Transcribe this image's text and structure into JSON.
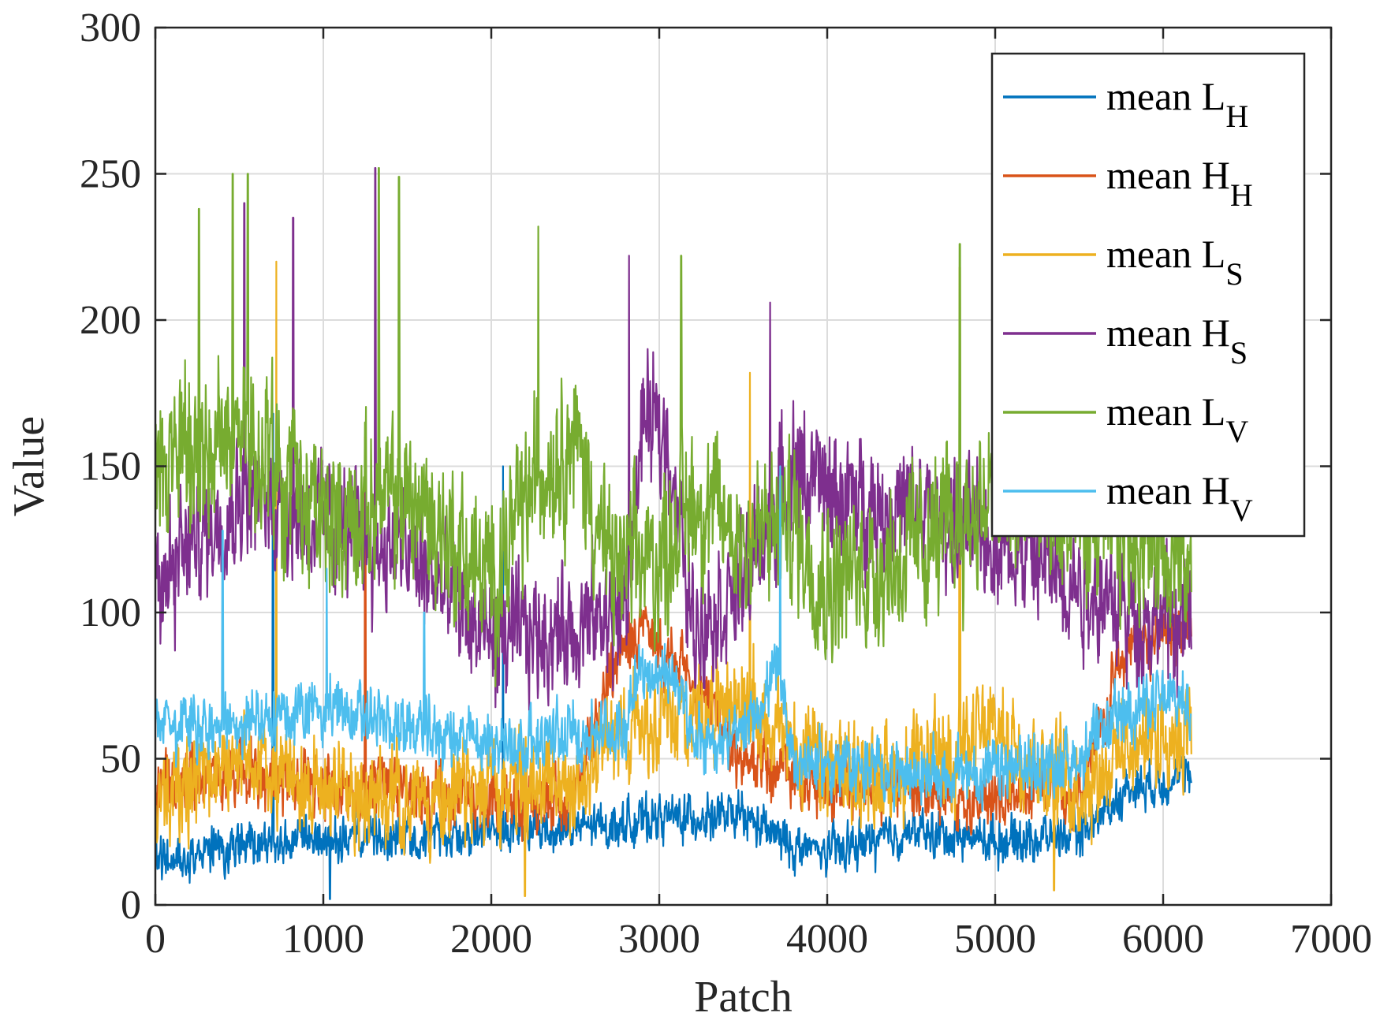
{
  "chart_data": {
    "type": "line",
    "xlabel": "Patch",
    "ylabel": "Value",
    "xlim": [
      0,
      7000
    ],
    "ylim": [
      0,
      300
    ],
    "x_ticks": [
      "0",
      "1000",
      "2000",
      "3000",
      "4000",
      "5000",
      "6000",
      "7000"
    ],
    "y_ticks": [
      "0",
      "50",
      "100",
      "150",
      "200",
      "250",
      "300"
    ],
    "grid": true,
    "legend_position": "top-right",
    "n_points": 6170,
    "series": [
      {
        "name": "mean L_H",
        "label_main": "mean L",
        "label_sub": "H",
        "color": "#0072BD",
        "segments": [
          [
            0,
            15
          ],
          [
            500,
            20
          ],
          [
            1000,
            22
          ],
          [
            1500,
            24
          ],
          [
            2000,
            25
          ],
          [
            2500,
            26
          ],
          [
            2800,
            28
          ],
          [
            3000,
            30
          ],
          [
            3500,
            30
          ],
          [
            3800,
            20
          ],
          [
            4000,
            18
          ],
          [
            4500,
            25
          ],
          [
            5000,
            22
          ],
          [
            5500,
            24
          ],
          [
            5800,
            40
          ],
          [
            6170,
            45
          ]
        ],
        "spread": 10,
        "spikes": [
          [
            700,
            168
          ],
          [
            2070,
            150
          ],
          [
            1040,
            2
          ]
        ]
      },
      {
        "name": "mean H_H",
        "label_main": "mean H",
        "label_sub": "H",
        "color": "#D95319",
        "segments": [
          [
            0,
            40
          ],
          [
            500,
            45
          ],
          [
            1000,
            40
          ],
          [
            1500,
            40
          ],
          [
            2000,
            35
          ],
          [
            2500,
            38
          ],
          [
            2800,
            95
          ],
          [
            3000,
            90
          ],
          [
            3500,
            50
          ],
          [
            4000,
            40
          ],
          [
            4500,
            40
          ],
          [
            5000,
            35
          ],
          [
            5500,
            40
          ],
          [
            5800,
            90
          ],
          [
            6170,
            95
          ]
        ],
        "spread": 14,
        "spikes": [
          [
            1250,
            160
          ],
          [
            2820,
            100
          ]
        ]
      },
      {
        "name": "mean L_S",
        "label_main": "mean L",
        "label_sub": "S",
        "color": "#EDB120",
        "segments": [
          [
            0,
            35
          ],
          [
            500,
            50
          ],
          [
            1000,
            40
          ],
          [
            1500,
            35
          ],
          [
            2000,
            40
          ],
          [
            2500,
            40
          ],
          [
            2800,
            62
          ],
          [
            3000,
            65
          ],
          [
            3500,
            70
          ],
          [
            4000,
            45
          ],
          [
            4500,
            45
          ],
          [
            5000,
            60
          ],
          [
            5500,
            40
          ],
          [
            5800,
            55
          ],
          [
            6170,
            60
          ]
        ],
        "spread": 22,
        "spikes": [
          [
            720,
            220
          ],
          [
            4790,
            218
          ],
          [
            3540,
            182
          ],
          [
            2200,
            3
          ],
          [
            5350,
            5
          ]
        ]
      },
      {
        "name": "mean H_S",
        "label_main": "mean H",
        "label_sub": "S",
        "color": "#7E2F8E",
        "segments": [
          [
            0,
            110
          ],
          [
            500,
            140
          ],
          [
            1000,
            130
          ],
          [
            1500,
            120
          ],
          [
            2000,
            90
          ],
          [
            2500,
            95
          ],
          [
            2800,
            100
          ],
          [
            2900,
            165
          ],
          [
            3050,
            160
          ],
          [
            3200,
            95
          ],
          [
            3500,
            110
          ],
          [
            3800,
            150
          ],
          [
            4000,
            140
          ],
          [
            4500,
            135
          ],
          [
            5000,
            125
          ],
          [
            5500,
            110
          ],
          [
            5800,
            100
          ],
          [
            6170,
            95
          ]
        ],
        "spread": 28,
        "spikes": [
          [
            1310,
            252
          ],
          [
            530,
            240
          ],
          [
            2820,
            222
          ],
          [
            3660,
            206
          ],
          [
            820,
            235
          ]
        ]
      },
      {
        "name": "mean L_V",
        "label_main": "mean L",
        "label_sub": "V",
        "color": "#77AC30",
        "segments": [
          [
            0,
            150
          ],
          [
            500,
            160
          ],
          [
            1000,
            130
          ],
          [
            1500,
            140
          ],
          [
            2000,
            110
          ],
          [
            2300,
            150
          ],
          [
            2500,
            160
          ],
          [
            2700,
            115
          ],
          [
            3000,
            118
          ],
          [
            3200,
            140
          ],
          [
            3500,
            125
          ],
          [
            3800,
            130
          ],
          [
            4000,
            110
          ],
          [
            4500,
            120
          ],
          [
            5000,
            140
          ],
          [
            5500,
            130
          ],
          [
            6000,
            125
          ],
          [
            6170,
            110
          ]
        ],
        "spread": 35,
        "spikes": [
          [
            460,
            250
          ],
          [
            550,
            250
          ],
          [
            1330,
            252
          ],
          [
            1450,
            249
          ],
          [
            2280,
            232
          ],
          [
            3130,
            222
          ],
          [
            4790,
            226
          ],
          [
            260,
            238
          ]
        ]
      },
      {
        "name": "mean H_V",
        "label_main": "mean H",
        "label_sub": "V",
        "color": "#4DBEEE",
        "segments": [
          [
            0,
            60
          ],
          [
            500,
            62
          ],
          [
            800,
            65
          ],
          [
            1000,
            68
          ],
          [
            1500,
            60
          ],
          [
            2000,
            55
          ],
          [
            2500,
            58
          ],
          [
            2800,
            60
          ],
          [
            2850,
            80
          ],
          [
            3100,
            78
          ],
          [
            3200,
            55
          ],
          [
            3500,
            58
          ],
          [
            3700,
            80
          ],
          [
            3800,
            50
          ],
          [
            4000,
            48
          ],
          [
            4500,
            45
          ],
          [
            5000,
            45
          ],
          [
            5500,
            50
          ],
          [
            5800,
            68
          ],
          [
            6170,
            70
          ]
        ],
        "spread": 14,
        "spikes": [
          [
            400,
            128
          ],
          [
            1020,
            115
          ],
          [
            3720,
            150
          ],
          [
            1600,
            100
          ]
        ]
      }
    ]
  }
}
